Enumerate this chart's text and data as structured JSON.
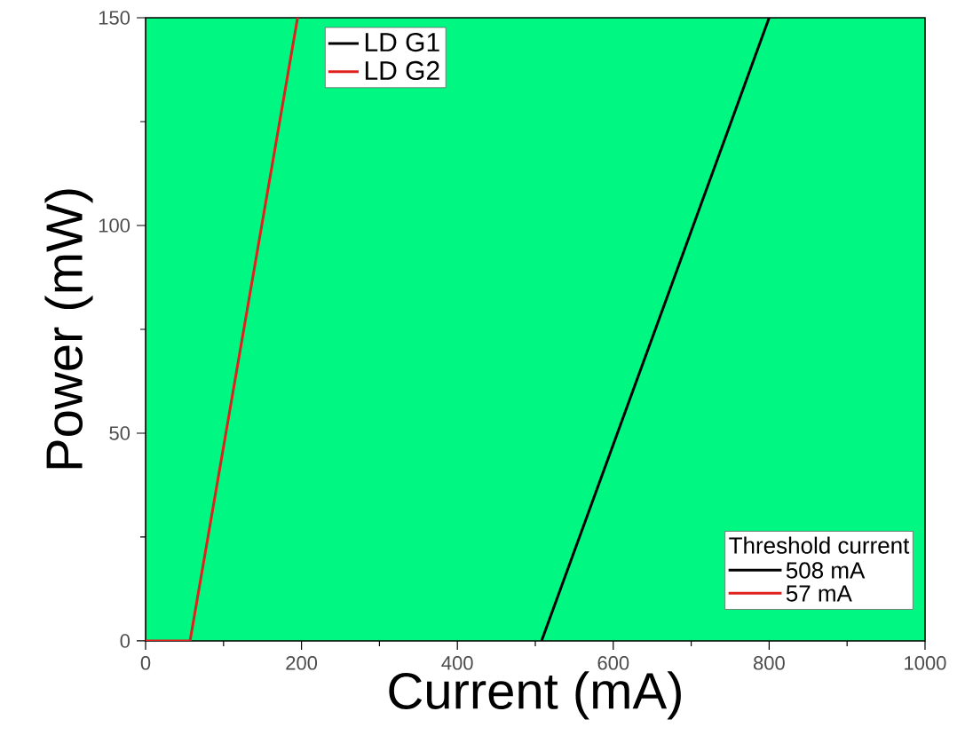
{
  "chart_data": {
    "type": "line",
    "xlabel": "Current (mA)",
    "ylabel": "Power (mW)",
    "xlim": [
      0,
      1000
    ],
    "ylim": [
      0,
      150
    ],
    "xticks": [
      0,
      200,
      400,
      600,
      800,
      1000
    ],
    "yticks": [
      0,
      50,
      100,
      150
    ],
    "legend": "top left",
    "grid": false,
    "marker": "none",
    "line_style": "solid",
    "legend_title": "Threshold current",
    "annotations": [
      "508 mA",
      "57 mA"
    ],
    "series": [
      {
        "name": "LD G1",
        "color": "#000000",
        "x": [
          508,
          800
        ],
        "values": [
          0,
          150
        ]
      },
      {
        "name": "LD G2",
        "color": "#e0201c",
        "x": [
          0,
          57,
          195
        ],
        "values": [
          0,
          0,
          150
        ]
      }
    ]
  }
}
